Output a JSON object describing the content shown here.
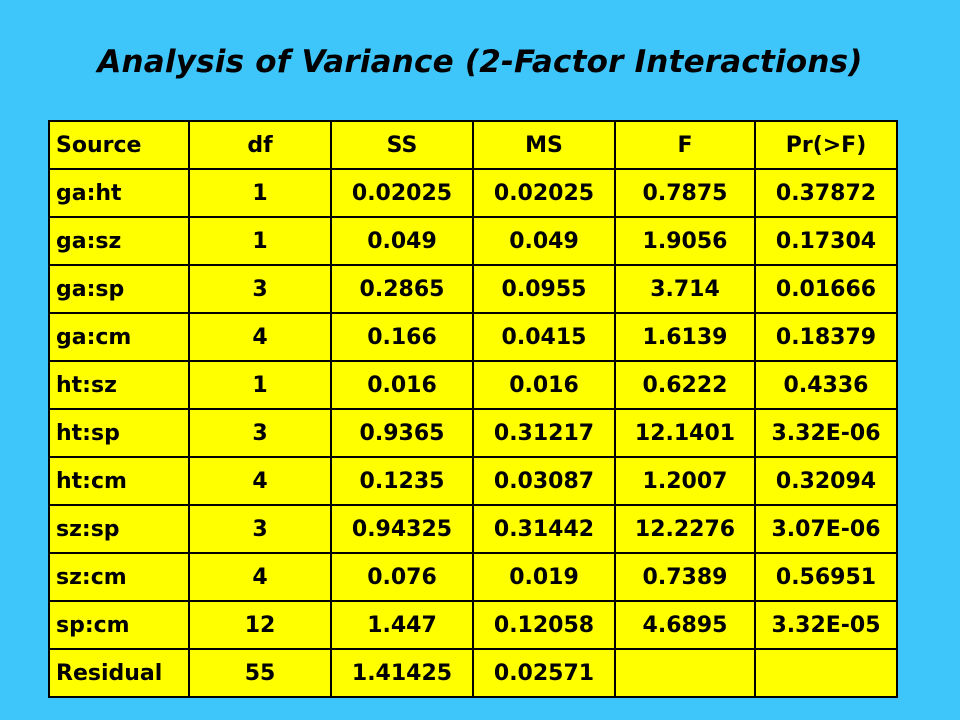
{
  "title": "Analysis of Variance (2-Factor Interactions)",
  "colors": {
    "background": "#3ec6fb",
    "table_fill": "#ffff00",
    "text": "#000000"
  },
  "table": {
    "headers": [
      "Source",
      "df",
      "SS",
      "MS",
      "F",
      "Pr(>F)"
    ],
    "rows": [
      [
        "ga:ht",
        "1",
        "0.02025",
        "0.02025",
        "0.7875",
        "0.37872"
      ],
      [
        "ga:sz",
        "1",
        "0.049",
        "0.049",
        "1.9056",
        "0.17304"
      ],
      [
        "ga:sp",
        "3",
        "0.2865",
        "0.0955",
        "3.714",
        "0.01666"
      ],
      [
        "ga:cm",
        "4",
        "0.166",
        "0.0415",
        "1.6139",
        "0.18379"
      ],
      [
        "ht:sz",
        "1",
        "0.016",
        "0.016",
        "0.6222",
        "0.4336"
      ],
      [
        "ht:sp",
        "3",
        "0.9365",
        "0.31217",
        "12.1401",
        "3.32E-06"
      ],
      [
        "ht:cm",
        "4",
        "0.1235",
        "0.03087",
        "1.2007",
        "0.32094"
      ],
      [
        "sz:sp",
        "3",
        "0.94325",
        "0.31442",
        "12.2276",
        "3.07E-06"
      ],
      [
        "sz:cm",
        "4",
        "0.076",
        "0.019",
        "0.7389",
        "0.56951"
      ],
      [
        "sp:cm",
        "12",
        "1.447",
        "0.12058",
        "4.6895",
        "3.32E-05"
      ],
      [
        "Residual",
        "55",
        "1.41425",
        "0.02571",
        "",
        ""
      ]
    ]
  }
}
